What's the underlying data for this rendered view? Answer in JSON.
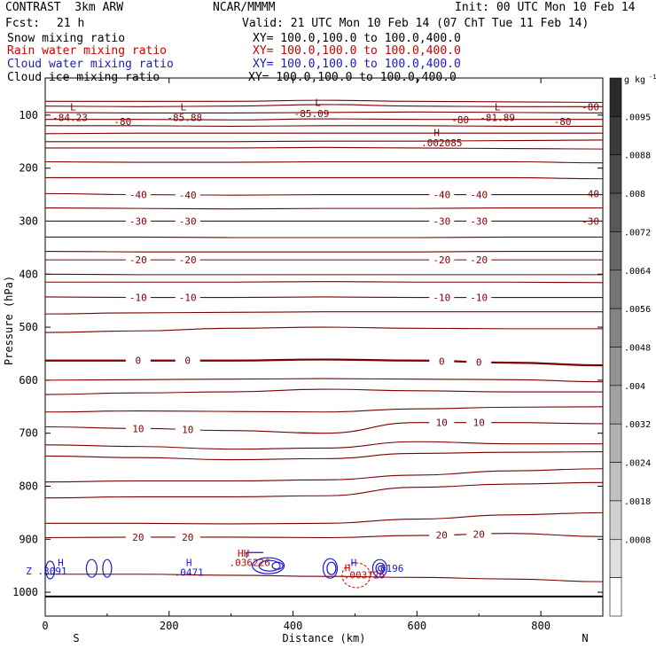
{
  "header": {
    "title": "CONTRAST  3km ARW",
    "center": "NCAR/MMMM",
    "init": "Init: 00 UTC Mon 10 Feb 14",
    "fcst_label": "Fcst:",
    "fcst_value": "21 h",
    "valid": "Valid: 21 UTC Mon 10 Feb 14 (07 ChT Tue 11 Feb 14)"
  },
  "fields": [
    {
      "name": "Snow mixing ratio",
      "xy": "XY= 100.0,100.0 to 100.0,400.0",
      "color": "#000000"
    },
    {
      "name": "Rain water mixing ratio",
      "xy": "XY= 100.0,100.0 to 100.0,400.0",
      "color": "#cc0000"
    },
    {
      "name": "Cloud water mixing ratio",
      "xy": "XY= 100.0,100.0 to 100.0,400.0",
      "color": "#1a1acc"
    },
    {
      "name": "Cloud ice mixing ratio",
      "xy": "XY= 100.0,100.0 to 100.0,400.0",
      "color": "#000000"
    }
  ],
  "chart_data": {
    "type": "contour",
    "xlabel": "Distance (km)",
    "ylabel": "Pressure (hPa)",
    "xlim": [
      0,
      900
    ],
    "ylim": [
      1045,
      30
    ],
    "x_ticks": [
      0,
      200,
      400,
      600,
      800
    ],
    "y_ticks": [
      100,
      200,
      300,
      400,
      500,
      600,
      700,
      800,
      900,
      1000
    ],
    "x_end_labels": {
      "left": "S",
      "right": "N"
    },
    "temperature_contours": {
      "color": "#7a0000",
      "x": [
        0,
        150,
        300,
        450,
        600,
        750,
        900
      ],
      "lines": [
        {
          "p": [
            74,
            74,
            74,
            72,
            74,
            75,
            76
          ]
        },
        {
          "p": [
            83,
            84,
            83,
            80,
            83,
            84,
            84
          ]
        },
        {
          "p": [
            95,
            96,
            96,
            95,
            94,
            95,
            96
          ]
        },
        {
          "p": [
            108,
            108,
            109,
            107,
            108,
            108,
            108
          ]
        },
        {
          "p": [
            120,
            120,
            121,
            120,
            120,
            121,
            121
          ]
        },
        {
          "p": [
            135,
            134,
            134,
            134,
            134,
            134,
            134
          ]
        },
        {
          "p": [
            150,
            150,
            150,
            149,
            149,
            148,
            147
          ]
        },
        {
          "p": [
            162,
            162,
            162,
            161,
            162,
            163,
            164
          ]
        },
        {
          "p": [
            188,
            189,
            189,
            188,
            188,
            188,
            190
          ]
        },
        {
          "p": [
            218,
            218,
            218,
            218,
            218,
            218,
            220
          ]
        },
        {
          "p": [
            248,
            250,
            251,
            250,
            250,
            250,
            250
          ],
          "label": "-40"
        },
        {
          "p": [
            275,
            276,
            277,
            276,
            276,
            275,
            275
          ]
        },
        {
          "p": [
            300,
            300,
            300,
            300,
            300,
            300,
            300
          ],
          "label": "-30"
        },
        {
          "p": [
            330,
            330,
            331,
            331,
            331,
            330,
            330
          ]
        },
        {
          "p": [
            357,
            358,
            358,
            358,
            358,
            357,
            357
          ]
        },
        {
          "p": [
            373,
            373,
            373,
            373,
            373,
            373,
            373
          ],
          "label": "-20"
        },
        {
          "p": [
            400,
            401,
            401,
            401,
            401,
            401,
            401
          ]
        },
        {
          "p": [
            415,
            415,
            415,
            414,
            415,
            415,
            416
          ]
        },
        {
          "p": [
            443,
            444,
            444,
            443,
            444,
            444,
            444
          ],
          "label": "-10"
        },
        {
          "p": [
            475,
            473,
            472,
            471,
            471,
            471,
            471
          ]
        },
        {
          "p": [
            510,
            507,
            502,
            500,
            502,
            503,
            503
          ]
        },
        {
          "p": [
            563,
            563,
            563,
            561,
            563,
            567,
            572
          ],
          "label": "0",
          "bold": true
        },
        {
          "p": [
            600,
            599,
            598,
            597,
            598,
            599,
            603
          ]
        },
        {
          "p": [
            627,
            624,
            622,
            617,
            620,
            622,
            622
          ]
        },
        {
          "p": [
            660,
            658,
            659,
            660,
            654,
            651,
            650
          ]
        },
        {
          "p": [
            688,
            691,
            695,
            700,
            680,
            680,
            682
          ],
          "label": "10"
        },
        {
          "p": [
            722,
            725,
            730,
            728,
            716,
            720,
            720
          ]
        },
        {
          "p": [
            743,
            746,
            750,
            748,
            738,
            736,
            735
          ]
        },
        {
          "p": [
            792,
            790,
            790,
            788,
            779,
            771,
            767
          ]
        },
        {
          "p": [
            822,
            820,
            820,
            818,
            802,
            796,
            793
          ]
        },
        {
          "p": [
            870,
            870,
            871,
            870,
            862,
            854,
            850
          ]
        },
        {
          "p": [
            897,
            896,
            896,
            897,
            893,
            889,
            895
          ],
          "label": "20"
        },
        {
          "p": [
            966,
            966,
            968,
            970,
            972,
            975,
            980
          ]
        }
      ],
      "extra_labels": [
        {
          "x": 40,
          "p": 104,
          "text": "-84.23"
        },
        {
          "x": 125,
          "p": 112,
          "text": "-80"
        },
        {
          "x": 225,
          "p": 104,
          "text": "-85.88"
        },
        {
          "x": 430,
          "p": 97,
          "text": "-85.09"
        },
        {
          "x": 730,
          "p": 104,
          "text": "-81.89"
        },
        {
          "x": 880,
          "p": 84,
          "text": "-80"
        },
        {
          "x": 835,
          "p": 112,
          "text": "-80"
        },
        {
          "x": 670,
          "p": 109,
          "text": "-80"
        },
        {
          "x": 640,
          "p": 152,
          "text": ".002085"
        },
        {
          "x": 880,
          "p": 248,
          "text": "-40"
        },
        {
          "x": 880,
          "p": 300,
          "text": "-30"
        }
      ],
      "markers": [
        {
          "x": 45,
          "p": 84,
          "text": "L"
        },
        {
          "x": 223,
          "p": 84,
          "text": "L"
        },
        {
          "x": 440,
          "p": 76,
          "text": "L"
        },
        {
          "x": 730,
          "p": 84,
          "text": "L"
        },
        {
          "x": 632,
          "p": 133,
          "text": "H"
        }
      ]
    },
    "cloud_water_contours": {
      "color": "#1a1acc",
      "labels": [
        {
          "x": 2,
          "p": 960,
          "text": "Z .3091"
        },
        {
          "x": 232,
          "p": 962,
          "text": ".0471"
        },
        {
          "x": 555,
          "p": 955,
          "text": ".6196"
        }
      ],
      "markers": [
        {
          "x": 25,
          "p": 944,
          "text": "H"
        },
        {
          "x": 232,
          "p": 944,
          "text": "H"
        },
        {
          "x": 498,
          "p": 944,
          "text": "H"
        }
      ]
    },
    "rain_contours": {
      "color": "#cc0000",
      "labels": [
        {
          "x": 330,
          "p": 944,
          "text": ".036226"
        },
        {
          "x": 515,
          "p": 967,
          "text": ".003726"
        }
      ],
      "markers": [
        {
          "x": 320,
          "p": 926,
          "text": "HH"
        },
        {
          "x": 488,
          "p": 954,
          "text": "H"
        }
      ]
    },
    "colorbar": {
      "unit": "g kg",
      "unit_sup": "-1",
      "ticks": [
        ".0095",
        ".0088",
        ".008",
        ".0072",
        ".0064",
        ".0056",
        ".0048",
        ".004",
        ".0032",
        ".0024",
        ".0018",
        ".0008"
      ],
      "colors": [
        "#2a2a2a",
        "#3a3a3a",
        "#4a4a4a",
        "#585858",
        "#676767",
        "#757575",
        "#848484",
        "#939393",
        "#a2a2a2",
        "#b1b1b1",
        "#c0c0c0",
        "#d0d0d0",
        "#dfdfdf",
        "#ffffff"
      ]
    }
  }
}
